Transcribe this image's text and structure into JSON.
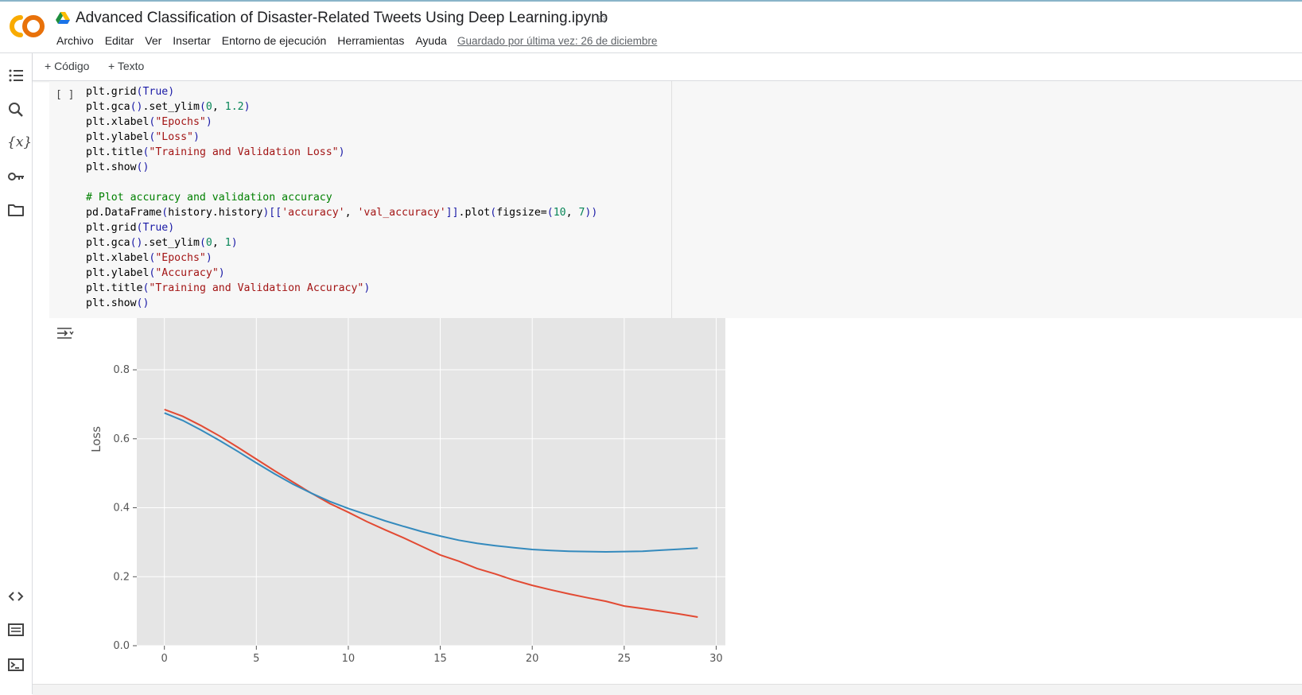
{
  "header": {
    "title": "Advanced Classification of Disaster-Related Tweets Using Deep Learning.ipynb",
    "menu": [
      "Archivo",
      "Editar",
      "Ver",
      "Insertar",
      "Entorno de ejecución",
      "Herramientas",
      "Ayuda"
    ],
    "saved_text": "Guardado por última vez: 26 de diciembre"
  },
  "icons": {
    "logo": "colab-logo-icon",
    "drive": "google-drive-icon",
    "star": "star-icon",
    "sidebar": [
      "table-of-contents-icon",
      "search-icon",
      "variables-icon",
      "key-icon",
      "folder-icon",
      "code-snippets-icon",
      "command-palette-icon",
      "terminal-icon"
    ],
    "output": "output-toggle-icon"
  },
  "toolbar": {
    "add_code": "+ Código",
    "add_text": "+ Texto"
  },
  "cell": {
    "run_indicator": "[ ]",
    "lines": [
      "plt.grid(True)",
      "plt.gca().set_ylim(0, 1.2)",
      "plt.xlabel(\"Epochs\")",
      "plt.ylabel(\"Loss\")",
      "plt.title(\"Training and Validation Loss\")",
      "plt.show()",
      "",
      "# Plot accuracy and validation accuracy",
      "pd.DataFrame(history.history)[['accuracy', 'val_accuracy']].plot(figsize=(10, 7))",
      "plt.grid(True)",
      "plt.gca().set_ylim(0, 1)",
      "plt.xlabel(\"Epochs\")",
      "plt.ylabel(\"Accuracy\")",
      "plt.title(\"Training and Validation Accuracy\")",
      "plt.show()"
    ]
  },
  "chart_data": {
    "type": "line",
    "ylabel": "Loss",
    "xlim": [
      -1.5,
      30.5
    ],
    "ylim": [
      0.0,
      0.95
    ],
    "xticks": [
      "0",
      "5",
      "10",
      "15",
      "20",
      "25",
      "30"
    ],
    "xtick_values": [
      0,
      5,
      10,
      15,
      20,
      25,
      30
    ],
    "yticks": [
      "0.0",
      "0.2",
      "0.4",
      "0.6",
      "0.8"
    ],
    "ytick_values": [
      0.0,
      0.2,
      0.4,
      0.6,
      0.8
    ],
    "grid": true,
    "x": [
      0,
      1,
      2,
      3,
      4,
      5,
      6,
      7,
      8,
      9,
      10,
      11,
      12,
      13,
      14,
      15,
      16,
      17,
      18,
      19,
      20,
      21,
      22,
      23,
      24,
      25,
      26,
      27,
      28,
      29
    ],
    "series": [
      {
        "color": "#e24a33",
        "values": [
          0.685,
          0.665,
          0.638,
          0.608,
          0.575,
          0.541,
          0.507,
          0.474,
          0.442,
          0.412,
          0.387,
          0.36,
          0.336,
          0.313,
          0.288,
          0.263,
          0.245,
          0.224,
          0.208,
          0.19,
          0.175,
          0.162,
          0.15,
          0.139,
          0.129,
          0.115,
          0.108,
          0.1,
          0.092,
          0.083
        ]
      },
      {
        "color": "#348abd",
        "values": [
          0.675,
          0.653,
          0.625,
          0.595,
          0.563,
          0.53,
          0.498,
          0.468,
          0.442,
          0.418,
          0.398,
          0.38,
          0.362,
          0.346,
          0.331,
          0.318,
          0.306,
          0.297,
          0.29,
          0.284,
          0.279,
          0.276,
          0.274,
          0.273,
          0.272,
          0.273,
          0.274,
          0.277,
          0.28,
          0.283
        ]
      }
    ]
  }
}
